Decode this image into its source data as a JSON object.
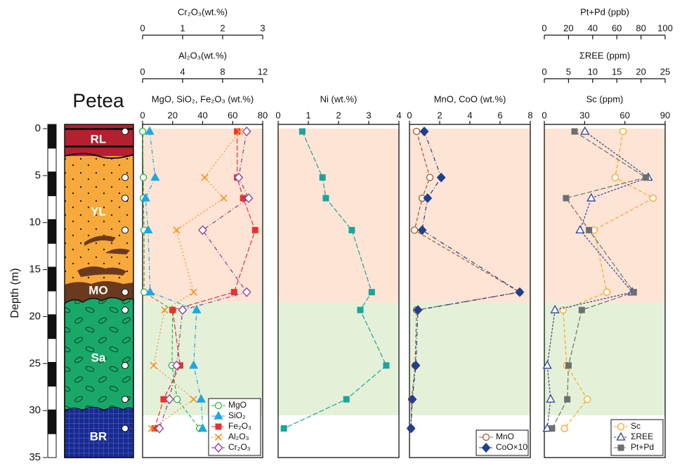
{
  "column": {
    "title": "Petea",
    "layers": [
      "RL",
      "YL",
      "MO",
      "Sa",
      "BR"
    ]
  },
  "zones": [
    {
      "from": 0,
      "to": 18.5,
      "color": "#fde4d4"
    },
    {
      "from": 18.5,
      "to": 30.5,
      "color": "#e4f1d8"
    }
  ],
  "chart_data": [
    {
      "type": "line",
      "ylabel": "Depth (m)",
      "ylim": [
        0,
        35
      ],
      "yticks": [
        0,
        5,
        10,
        15,
        20,
        25,
        30,
        35
      ],
      "depth": [
        0.3,
        5.2,
        7.4,
        10.8,
        17.4,
        19.3,
        25.2,
        28.8,
        31.9
      ],
      "xaxes": [
        {
          "label": "MgO, SiO₂, Fe₂O₃ (wt.%)",
          "xlim": [
            0,
            80
          ],
          "xticks": [
            0,
            20,
            40,
            60,
            80
          ]
        },
        {
          "label": "Al₂O₃(wt.%)",
          "xlim": [
            0,
            12
          ],
          "xticks": [
            0,
            4,
            8,
            12
          ]
        },
        {
          "label": "Cr₂O₃(wt.%)",
          "xlim": [
            0,
            3
          ],
          "xticks": [
            0,
            1,
            2,
            3
          ]
        }
      ],
      "legend": "bottom-right",
      "series": [
        {
          "name": "MgO",
          "color": "#2db34a",
          "marker": "circle-open",
          "axis": 0,
          "values": [
            0,
            0.5,
            0.5,
            1,
            1,
            20,
            19.6,
            23,
            38
          ]
        },
        {
          "name": "SiO₂",
          "color": "#1ea7e1",
          "marker": "triangle",
          "axis": 0,
          "values": [
            4.7,
            8.4,
            2,
            3.7,
            5,
            36,
            34,
            39,
            40
          ]
        },
        {
          "name": "Fe₂O₃",
          "color": "#e8312f",
          "marker": "square",
          "axis": 0,
          "values": [
            63,
            63,
            67,
            75,
            61,
            20,
            25,
            14,
            8
          ]
        },
        {
          "name": "Al₂O₃",
          "color": "#f39221",
          "marker": "cross",
          "axis": 1,
          "values": [
            9.7,
            6.2,
            8.1,
            3.4,
            5.1,
            2.2,
            1.1,
            5.1,
            0.9
          ]
        },
        {
          "name": "Cr₂O₃",
          "color": "#8b3a96",
          "marker": "diamond-open",
          "axis": 2,
          "values": [
            2.6,
            2.4,
            2.65,
            1.5,
            2.6,
            1.0,
            0.85,
            0.67,
            0.42
          ]
        }
      ]
    },
    {
      "type": "line",
      "ylim": [
        0,
        35
      ],
      "depth": [
        0.3,
        5.2,
        7.4,
        10.8,
        17.4,
        19.3,
        25.2,
        28.8,
        31.9
      ],
      "xaxes": [
        {
          "label": "Ni (wt.%)",
          "xlim": [
            0,
            4
          ],
          "xticks": [
            0,
            1,
            2,
            3,
            4
          ]
        }
      ],
      "series": [
        {
          "color": "#1ba39c",
          "marker": "square",
          "axis": 0,
          "values": [
            0.8,
            1.47,
            1.58,
            2.44,
            3.1,
            2.72,
            3.58,
            2.26,
            0.19
          ]
        }
      ]
    },
    {
      "type": "line",
      "ylim": [
        0,
        35
      ],
      "depth": [
        0.3,
        5.2,
        7.4,
        10.8,
        17.4,
        19.3,
        25.2,
        28.8,
        31.9
      ],
      "xaxes": [
        {
          "label": "MnO, CoO (wt.%)",
          "xlim": [
            0,
            8
          ],
          "xticks": [
            0,
            2,
            4,
            6,
            8
          ]
        }
      ],
      "legend": "bottom-right",
      "series": [
        {
          "name": "MnO",
          "color": "#9c5a2e",
          "marker": "circle-open",
          "axis": 0,
          "values": [
            0.47,
            1.35,
            0.84,
            0.33,
            7.3,
            0.47,
            0.37,
            0.14,
            0.1
          ]
        },
        {
          "name": "CoO×10",
          "color": "#1f3f8f",
          "marker": "diamond",
          "axis": 0,
          "values": [
            0.98,
            2.1,
            1.2,
            0.84,
            7.3,
            0.56,
            0.42,
            0.19,
            0.1
          ]
        }
      ]
    },
    {
      "type": "line",
      "ylim": [
        0,
        35
      ],
      "depth": [
        0.3,
        5.2,
        7.4,
        10.8,
        17.4,
        19.3,
        25.2,
        28.8,
        31.9
      ],
      "xaxes": [
        {
          "label": "Sc (ppm)",
          "xlim": [
            0,
            90
          ],
          "xticks": [
            0,
            30,
            60,
            90
          ]
        },
        {
          "label": "ΣREE (ppm)",
          "xlim": [
            0,
            25
          ],
          "xticks": [
            0,
            5,
            10,
            15,
            20,
            25
          ]
        },
        {
          "label": "Pt+Pd (ppb)",
          "xlim": [
            0,
            100
          ],
          "xticks": [
            0,
            20,
            40,
            60,
            80,
            100
          ]
        }
      ],
      "legend": "bottom-right",
      "series": [
        {
          "name": "Sc",
          "color": "#f5a623",
          "marker": "circle-open",
          "axis": 0,
          "values": [
            58.6,
            52.8,
            81,
            37,
            46.6,
            14,
            16.7,
            32,
            15
          ]
        },
        {
          "name": "ΣREE",
          "color": "#2e3f9e",
          "marker": "triangle-open",
          "axis": 1,
          "values": [
            8.4,
            21.5,
            9.7,
            7.4,
            18.2,
            2.2,
            0.6,
            1.3,
            0.6
          ]
        },
        {
          "name": "Pt+Pd",
          "color": "#6d6e70",
          "marker": "square",
          "axis": 2,
          "values": [
            25,
            84,
            18,
            37,
            74,
            31,
            20,
            19,
            6.4
          ]
        }
      ]
    }
  ]
}
